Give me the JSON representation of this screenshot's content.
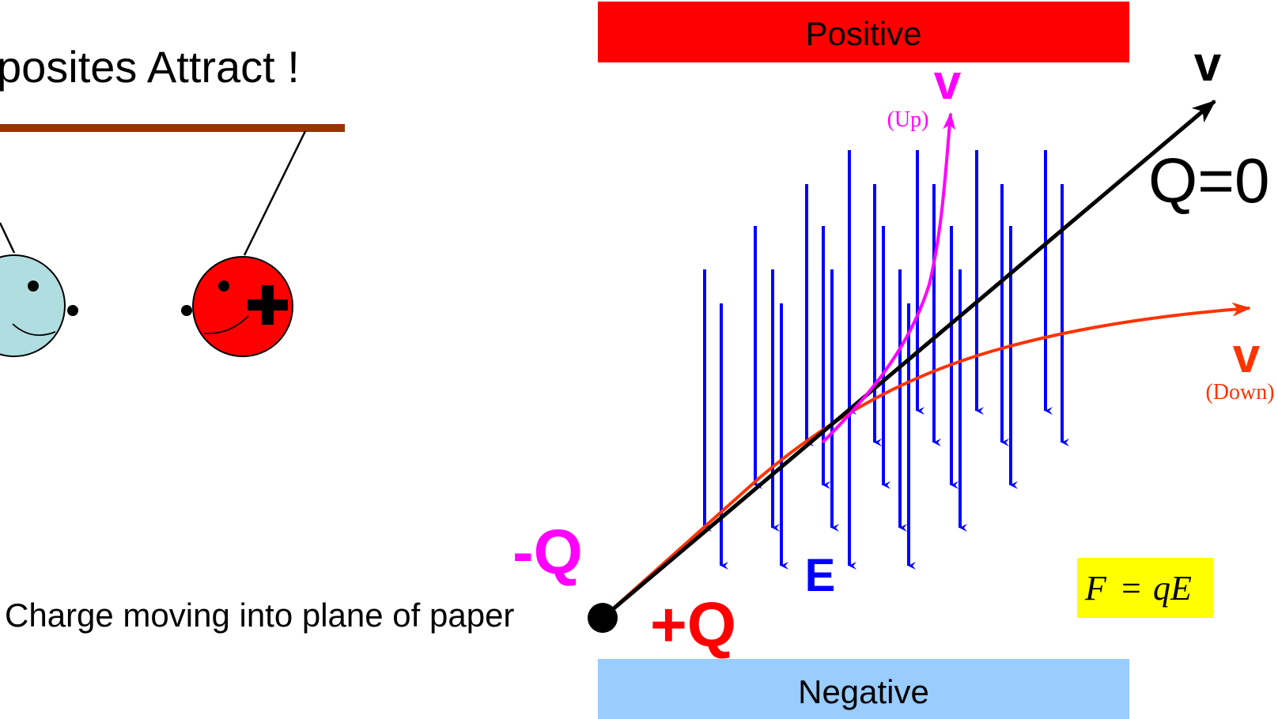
{
  "left_panel": {
    "title": "posites Attract !",
    "caption": "Charge moving into plane of paper"
  },
  "plates": {
    "positive_label": "Positive",
    "negative_label": "Negative",
    "positive_color": "#ff0000",
    "negative_color": "#99ccff"
  },
  "paths": {
    "neutral": {
      "velocity_label": "v",
      "charge_label": "Q=0",
      "color": "#000000"
    },
    "negative_charge": {
      "velocity_label": "v",
      "direction_label": "(Up)",
      "charge_label": "-Q",
      "color": "#ff00ff"
    },
    "positive_charge": {
      "velocity_label": "v",
      "direction_label": "(Down)",
      "charge_label": "+Q",
      "color": "#ff3300"
    }
  },
  "field": {
    "label": "E",
    "color": "#0000ff"
  },
  "formula": {
    "lhs": "F",
    "eq": "=",
    "rhs": "qE",
    "background": "#ffff00"
  },
  "ball_colors": {
    "left": "#b0dde0",
    "right": "#ff0000",
    "string": "#993300"
  }
}
